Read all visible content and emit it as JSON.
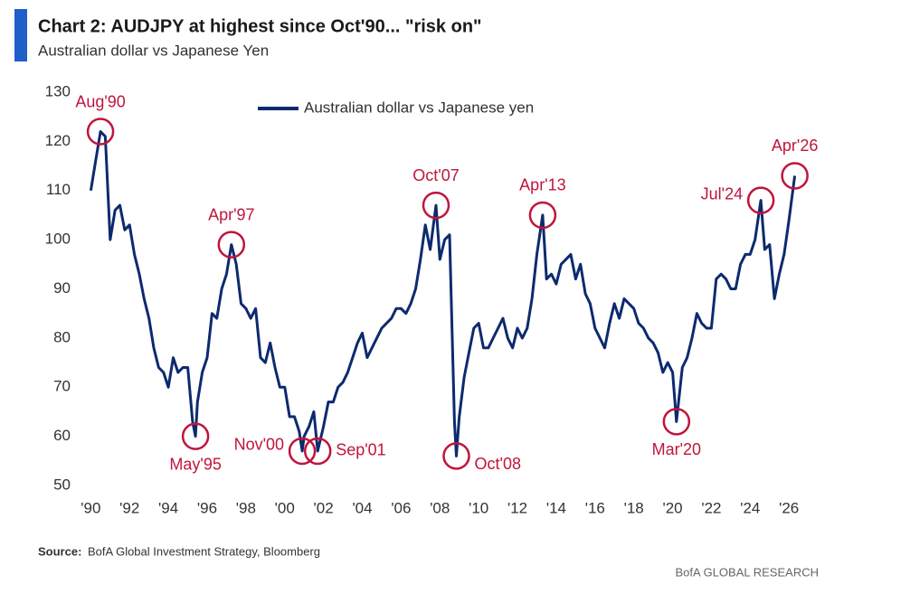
{
  "chart_data": {
    "type": "line",
    "title": "Chart 2: AUDJPY at highest since Oct'90... \"risk on\"",
    "subtitle": "Australian dollar vs Japanese Yen",
    "source_label": "Source:",
    "source": "BofA Global Investment Strategy, Bloomberg",
    "footer": "BofA GLOBAL RESEARCH",
    "legend": "top-center",
    "series": [
      {
        "name": "Australian dollar vs Japanese yen",
        "color": "#0d2a6e",
        "x": [
          1990.0,
          1990.25,
          1990.5,
          1990.75,
          1991.0,
          1991.25,
          1991.5,
          1991.75,
          1992.0,
          1992.25,
          1992.5,
          1992.75,
          1993.0,
          1993.25,
          1993.5,
          1993.75,
          1994.0,
          1994.25,
          1994.5,
          1994.75,
          1995.0,
          1995.25,
          1995.4,
          1995.5,
          1995.75,
          1996.0,
          1996.25,
          1996.5,
          1996.75,
          1997.0,
          1997.25,
          1997.5,
          1997.75,
          1998.0,
          1998.25,
          1998.5,
          1998.75,
          1999.0,
          1999.25,
          1999.5,
          1999.75,
          2000.0,
          2000.25,
          2000.5,
          2000.75,
          2000.9,
          2001.0,
          2001.25,
          2001.5,
          2001.7,
          2002.0,
          2002.25,
          2002.5,
          2002.75,
          2003.0,
          2003.25,
          2003.5,
          2003.75,
          2004.0,
          2004.25,
          2004.5,
          2004.75,
          2005.0,
          2005.25,
          2005.5,
          2005.75,
          2006.0,
          2006.25,
          2006.5,
          2006.75,
          2007.0,
          2007.25,
          2007.5,
          2007.8,
          2008.0,
          2008.25,
          2008.5,
          2008.75,
          2008.85,
          2009.0,
          2009.25,
          2009.5,
          2009.75,
          2010.0,
          2010.25,
          2010.5,
          2010.75,
          2011.0,
          2011.25,
          2011.5,
          2011.75,
          2012.0,
          2012.25,
          2012.5,
          2012.75,
          2013.0,
          2013.3,
          2013.5,
          2013.75,
          2014.0,
          2014.25,
          2014.5,
          2014.75,
          2015.0,
          2015.25,
          2015.5,
          2015.75,
          2016.0,
          2016.25,
          2016.5,
          2016.75,
          2017.0,
          2017.25,
          2017.5,
          2017.75,
          2018.0,
          2018.25,
          2018.5,
          2018.75,
          2019.0,
          2019.25,
          2019.5,
          2019.75,
          2020.0,
          2020.2,
          2020.5,
          2020.75,
          2021.0,
          2021.25,
          2021.5,
          2021.75,
          2022.0,
          2022.25,
          2022.5,
          2022.75,
          2023.0,
          2023.25,
          2023.5,
          2023.75,
          2024.0,
          2024.25,
          2024.55,
          2024.75,
          2025.0,
          2025.25,
          2025.5,
          2025.75,
          2026.0,
          2026.3
        ],
        "values": [
          110,
          116,
          122,
          121,
          100,
          106,
          107,
          102,
          103,
          97,
          93,
          88,
          84,
          78,
          74,
          73,
          70,
          76,
          73,
          74,
          74,
          63,
          60,
          67,
          73,
          76,
          85,
          84,
          90,
          93,
          99,
          95,
          87,
          86,
          84,
          86,
          76,
          75,
          79,
          74,
          70,
          70,
          64,
          64,
          61,
          57,
          60,
          62,
          65,
          57,
          62,
          67,
          67,
          70,
          71,
          73,
          76,
          79,
          81,
          76,
          78,
          80,
          82,
          83,
          84,
          86,
          86,
          85,
          87,
          90,
          96,
          103,
          98,
          107,
          96,
          100,
          101,
          63,
          56,
          64,
          72,
          77,
          82,
          83,
          78,
          78,
          80,
          82,
          84,
          80,
          78,
          82,
          80,
          82,
          88,
          97,
          105,
          92,
          93,
          91,
          95,
          96,
          97,
          92,
          95,
          89,
          87,
          82,
          80,
          78,
          83,
          87,
          84,
          88,
          87,
          86,
          83,
          82,
          80,
          79,
          77,
          73,
          75,
          73,
          63,
          74,
          76,
          80,
          85,
          83,
          82,
          82,
          92,
          93,
          92,
          90,
          90,
          95,
          97,
          97,
          100,
          108,
          98,
          99,
          88,
          93,
          97,
          104,
          113
        ]
      }
    ],
    "xlim": [
      1989.75,
      2027.25
    ],
    "xticks": [
      {
        "value": 1990,
        "label": "'90"
      },
      {
        "value": 1992,
        "label": "'92"
      },
      {
        "value": 1994,
        "label": "'94"
      },
      {
        "value": 1996,
        "label": "'96"
      },
      {
        "value": 1998,
        "label": "'98"
      },
      {
        "value": 2000,
        "label": "'00"
      },
      {
        "value": 2002,
        "label": "'02"
      },
      {
        "value": 2004,
        "label": "'04"
      },
      {
        "value": 2006,
        "label": "'06"
      },
      {
        "value": 2008,
        "label": "'08"
      },
      {
        "value": 2010,
        "label": "'10"
      },
      {
        "value": 2012,
        "label": "'12"
      },
      {
        "value": 2014,
        "label": "'14"
      },
      {
        "value": 2016,
        "label": "'16"
      },
      {
        "value": 2018,
        "label": "'18"
      },
      {
        "value": 2020,
        "label": "'20"
      },
      {
        "value": 2022,
        "label": "'22"
      },
      {
        "value": 2024,
        "label": "'24"
      },
      {
        "value": 2026,
        "label": "'26"
      }
    ],
    "ylim": [
      50,
      130
    ],
    "yticks": [
      50,
      60,
      70,
      80,
      90,
      100,
      110,
      120,
      130
    ],
    "grid": false,
    "annotation_color": "#c0143c",
    "annotations": [
      {
        "text": "Aug'90",
        "x": 1990.5,
        "y": 122,
        "place": "above"
      },
      {
        "text": "May'95",
        "x": 1995.4,
        "y": 60,
        "place": "below"
      },
      {
        "text": "Apr'97",
        "x": 1997.25,
        "y": 99,
        "place": "above"
      },
      {
        "text": "Nov'00",
        "x": 2000.9,
        "y": 57,
        "place": "left"
      },
      {
        "text": "Sep'01",
        "x": 2001.7,
        "y": 57,
        "place": "right"
      },
      {
        "text": "Oct'07",
        "x": 2007.8,
        "y": 107,
        "place": "above"
      },
      {
        "text": "Oct'08",
        "x": 2008.85,
        "y": 56,
        "place": "right-below"
      },
      {
        "text": "Apr'13",
        "x": 2013.3,
        "y": 105,
        "place": "above"
      },
      {
        "text": "Mar'20",
        "x": 2020.2,
        "y": 63,
        "place": "below"
      },
      {
        "text": "Jul'24",
        "x": 2024.55,
        "y": 108,
        "place": "left"
      },
      {
        "text": "Apr'26",
        "x": 2026.3,
        "y": 113,
        "place": "above"
      }
    ]
  }
}
